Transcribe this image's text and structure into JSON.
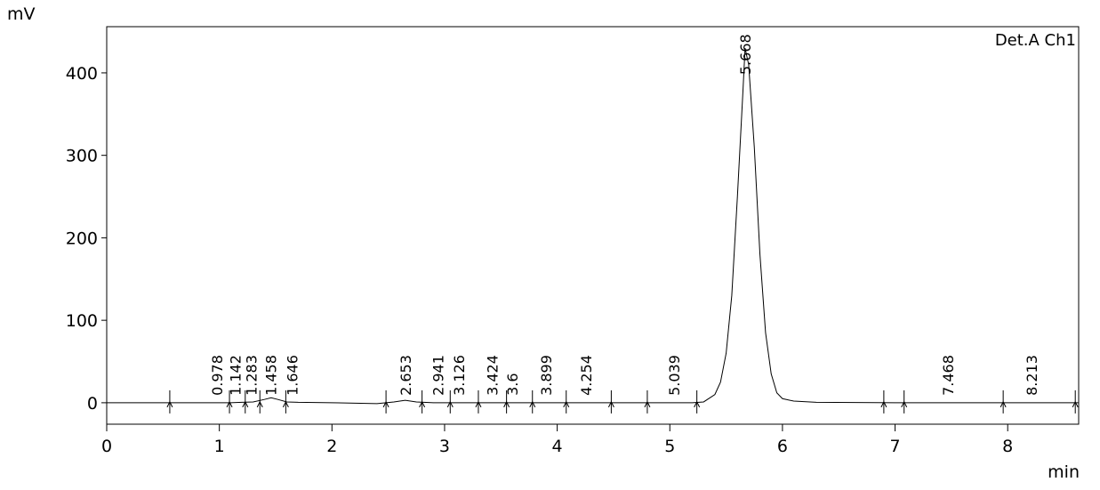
{
  "chart_data": {
    "type": "line",
    "y_label": "mV",
    "x_label": "min",
    "annotation": "Det.A Ch1",
    "x": [
      0,
      0.5,
      1.0,
      1.1,
      1.2,
      1.3,
      1.4,
      1.46,
      1.52,
      1.6,
      1.7,
      2.0,
      2.4,
      2.55,
      2.65,
      2.75,
      2.9,
      3.2,
      3.6,
      4.0,
      4.5,
      5.0,
      5.2,
      5.3,
      5.4,
      5.45,
      5.5,
      5.55,
      5.6,
      5.65,
      5.668,
      5.7,
      5.75,
      5.8,
      5.85,
      5.9,
      5.95,
      6.0,
      6.1,
      6.3,
      7.0,
      8.0,
      8.63
    ],
    "values": [
      0,
      0,
      0,
      0,
      0.5,
      1,
      4,
      6,
      4,
      1,
      0.5,
      0,
      -1,
      1,
      3,
      1,
      0,
      0,
      0,
      0,
      0,
      0,
      0,
      1,
      10,
      25,
      60,
      130,
      250,
      380,
      430,
      410,
      310,
      180,
      85,
      35,
      12,
      5,
      2,
      0.5,
      0,
      0,
      0
    ],
    "color": "#000000",
    "peak_labels": [
      0.978,
      1.142,
      1.283,
      1.458,
      1.646,
      2.653,
      2.941,
      3.126,
      3.424,
      3.6,
      3.899,
      4.254,
      5.039,
      5.668,
      7.468,
      8.213
    ],
    "integration_marks": [
      0.56,
      1.09,
      1.23,
      1.36,
      1.59,
      2.48,
      2.8,
      3.05,
      3.3,
      3.55,
      3.78,
      4.08,
      4.48,
      4.8,
      5.24,
      6.9,
      7.08,
      7.96,
      8.6
    ],
    "xlim": [
      0,
      8.63
    ],
    "ylim": [
      -26,
      456
    ],
    "xticks": [
      0,
      1,
      2,
      3,
      4,
      5,
      6,
      7,
      8
    ],
    "yticks": [
      0,
      100,
      200,
      300,
      400
    ]
  }
}
